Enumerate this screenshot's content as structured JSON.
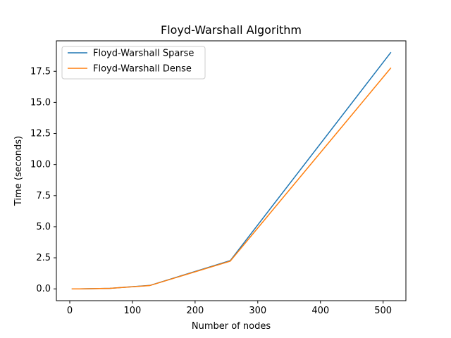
{
  "chart_data": {
    "type": "line",
    "title": "Floyd-Warshall Algorithm",
    "xlabel": "Number of nodes",
    "ylabel": "Time (seconds)",
    "xlim": [
      -21.35,
      536.35
    ],
    "ylim": [
      -0.95,
      19.95
    ],
    "xticks": [
      0,
      100,
      200,
      300,
      400,
      500
    ],
    "yticks": [
      0.0,
      2.5,
      5.0,
      7.5,
      10.0,
      12.5,
      15.0,
      17.5
    ],
    "xtick_labels": [
      "0",
      "100",
      "200",
      "300",
      "400",
      "500"
    ],
    "ytick_labels": [
      "0.0",
      "2.5",
      "5.0",
      "7.5",
      "10.0",
      "12.5",
      "15.0",
      "17.5"
    ],
    "grid": false,
    "legend_position": "upper-left",
    "series": [
      {
        "name": "Floyd-Warshall Sparse",
        "color": "#1f77b4",
        "x": [
          4,
          8,
          16,
          32,
          64,
          128,
          256,
          512
        ],
        "y": [
          0.0,
          0.0,
          0.0,
          0.01,
          0.04,
          0.28,
          2.27,
          19.0
        ]
      },
      {
        "name": "Floyd-Warshall Dense",
        "color": "#ff7f0e",
        "x": [
          4,
          8,
          16,
          32,
          64,
          128,
          256,
          512
        ],
        "y": [
          0.0,
          0.0,
          0.0,
          0.01,
          0.04,
          0.27,
          2.23,
          17.75
        ]
      }
    ]
  }
}
